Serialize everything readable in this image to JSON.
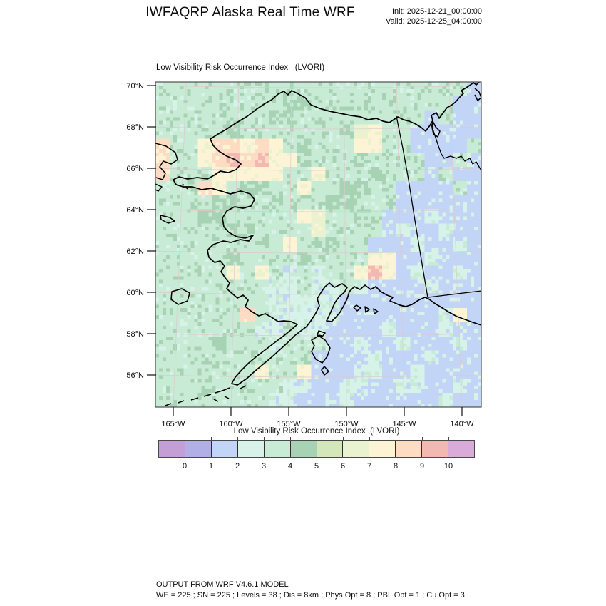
{
  "header": {
    "title": "IWFAQRP Alaska Real Time WRF",
    "init_label": "Init: 2025-12-21_00:00:00",
    "valid_label": "Valid: 2025-12-25_04:00:00"
  },
  "map": {
    "subtitle": "Low Visibility Risk Occurrence Index   (LVORI)"
  },
  "colorbar": {
    "title": "Low Visibility Risk Occurrence Index  (LVORI)",
    "tick_labels": [
      "0",
      "1",
      "2",
      "3",
      "4",
      "5",
      "6",
      "7",
      "8",
      "9",
      "10"
    ],
    "colors": [
      "#c49fd6",
      "#b2afe6",
      "#c3d5f7",
      "#d7f3e9",
      "#c8ebd5",
      "#a7d3b4",
      "#d3e7ba",
      "#eaf2cf",
      "#fdf3d5",
      "#fddcc3",
      "#f1b9b1",
      "#d9abd8"
    ]
  },
  "chart_data": {
    "type": "heatmap",
    "title": "Low Visibility Risk Occurrence Index (LVORI)",
    "region": "Alaska",
    "value_range": [
      0,
      10
    ],
    "legend_position": "bottom",
    "grid_on": true,
    "x_ticks": [
      {
        "label": "165°W",
        "f": 0.0547
      },
      {
        "label": "160°W",
        "f": 0.2319
      },
      {
        "label": "155°W",
        "f": 0.4092
      },
      {
        "label": "150°W",
        "f": 0.5864
      },
      {
        "label": "145°W",
        "f": 0.7637
      },
      {
        "label": "140°W",
        "f": 0.9409
      }
    ],
    "y_ticks": [
      {
        "label": "70°N",
        "f": 0.011
      },
      {
        "label": "68°N",
        "f": 0.1382
      },
      {
        "label": "66°N",
        "f": 0.2654
      },
      {
        "label": "64°N",
        "f": 0.3925
      },
      {
        "label": "62°N",
        "f": 0.5197
      },
      {
        "label": "60°N",
        "f": 0.6469
      },
      {
        "label": "58°N",
        "f": 0.7741
      },
      {
        "label": "56°N",
        "f": 0.9013
      }
    ],
    "grid_encoding": "23x23 cells, west-to-east / north-to-south; each char is an LVORI color band index into palette (0-9, a=10, b=11); band i covers values [i-1,i)",
    "palette": [
      "#c49fd6",
      "#b2afe6",
      "#c3d5f7",
      "#d7f3e9",
      "#c8ebd5",
      "#a7d3b4",
      "#d3e7ba",
      "#eaf2cf",
      "#fdf3d5",
      "#fddcc3",
      "#f1b9b1",
      "#d9abd8"
    ],
    "grid": [
      "44444444444444444444442",
      "44444444455444444444422",
      "44444444554444444442422",
      "44444544444444784422222",
      "94489989845444884422224",
      "94489a9a885444544442242",
      "94448888844844454442422",
      "44498455448445544222242",
      "44445544544455444222222",
      "44455444448744542223222",
      "44444554444744442322322",
      "44444445484454422232232",
      "44444544445444488223222",
      "444448484343448a8232232",
      "44444444334334322223222",
      "44444444333332222222222",
      "44444494333332222222382",
      "44444443343322223222322",
      "44445444344422322322232",
      "44444444444222232223222",
      "44444448448222332232222",
      "44454444433223322332232",
      "44444444332223222222322"
    ]
  },
  "footer": {
    "line1": "OUTPUT FROM WRF V4.6.1 MODEL",
    "line2": "WE = 225 ; SN = 225 ; Levels = 38 ; Dis = 8km ; Phys Opt = 8 ; PBL Opt = 1 ; Cu Opt = 3"
  }
}
